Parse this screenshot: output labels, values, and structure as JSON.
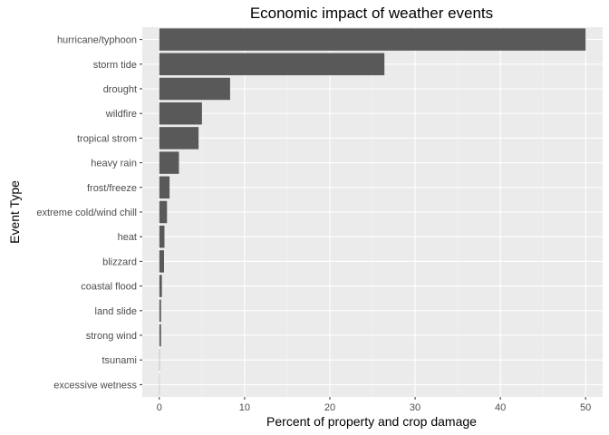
{
  "chart_data": {
    "type": "bar",
    "orientation": "horizontal",
    "title": "Economic impact of weather events",
    "xlabel": "Percent of property and crop damage",
    "ylabel": "Event Type",
    "categories": [
      "hurricane/typhoon",
      "storm tide",
      "drought",
      "wildfire",
      "tropical strom",
      "heavy rain",
      "frost/freeze",
      "extreme cold/wind chill",
      "heat",
      "blizzard",
      "coastal flood",
      "land slide",
      "strong wind",
      "tsunami",
      "excessive wetness"
    ],
    "values": [
      50.0,
      26.4,
      8.3,
      5.0,
      4.6,
      2.3,
      1.2,
      0.9,
      0.6,
      0.55,
      0.3,
      0.2,
      0.2,
      0.04,
      0.03
    ],
    "xlim": [
      -2,
      52
    ],
    "xticks": [
      0,
      10,
      20,
      30,
      40,
      50
    ],
    "grid": true,
    "colors": {
      "bar": "#595959",
      "panel": "#ebebeb",
      "grid_major": "#ffffff",
      "grid_minor": "#f5f5f5",
      "tick_text": "#4d4d4d",
      "tick_mark": "#333333"
    }
  }
}
